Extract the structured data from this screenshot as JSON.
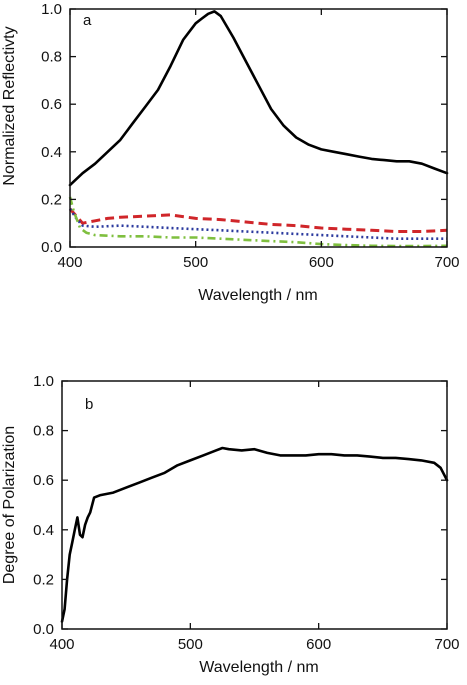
{
  "colors": {
    "black": "#000000",
    "red": "#d0262a",
    "blue": "#2b3a9e",
    "green": "#7fbf3f",
    "axis": "#111111"
  },
  "chart_data": [
    {
      "type": "line",
      "panel": "a",
      "xlabel": "Wavelength / nm",
      "ylabel": "Normalized Reflectivty",
      "xlim": [
        400,
        700
      ],
      "ylim": [
        0,
        1.0
      ],
      "xticks": [
        "400",
        "500",
        "600",
        "700"
      ],
      "yticks": [
        "0.0",
        "0.2",
        "0.4",
        "0.6",
        "0.8",
        "1.0"
      ],
      "series": [
        {
          "style": "solid",
          "color": "black",
          "x": [
            400,
            410,
            420,
            430,
            440,
            450,
            460,
            470,
            480,
            490,
            500,
            505,
            510,
            515,
            520,
            530,
            540,
            550,
            560,
            570,
            580,
            590,
            600,
            610,
            620,
            630,
            640,
            650,
            660,
            670,
            680,
            690,
            700
          ],
          "y": [
            0.26,
            0.31,
            0.35,
            0.4,
            0.45,
            0.52,
            0.59,
            0.66,
            0.76,
            0.87,
            0.94,
            0.96,
            0.98,
            0.99,
            0.97,
            0.88,
            0.78,
            0.68,
            0.58,
            0.51,
            0.46,
            0.43,
            0.41,
            0.4,
            0.39,
            0.38,
            0.37,
            0.365,
            0.36,
            0.36,
            0.35,
            0.33,
            0.31
          ]
        },
        {
          "style": "dashed",
          "color": "red",
          "x": [
            400,
            405,
            410,
            420,
            430,
            440,
            460,
            480,
            500,
            520,
            540,
            560,
            580,
            600,
            620,
            640,
            660,
            680,
            700
          ],
          "y": [
            0.16,
            0.13,
            0.1,
            0.11,
            0.12,
            0.125,
            0.13,
            0.135,
            0.12,
            0.115,
            0.105,
            0.095,
            0.09,
            0.08,
            0.075,
            0.07,
            0.065,
            0.065,
            0.07
          ]
        },
        {
          "style": "dotted",
          "color": "blue",
          "x": [
            400,
            405,
            410,
            420,
            440,
            460,
            480,
            500,
            520,
            540,
            560,
            580,
            600,
            620,
            640,
            660,
            680,
            700
          ],
          "y": [
            0.16,
            0.12,
            0.09,
            0.085,
            0.09,
            0.085,
            0.08,
            0.075,
            0.07,
            0.065,
            0.06,
            0.055,
            0.05,
            0.045,
            0.04,
            0.035,
            0.035,
            0.035
          ]
        },
        {
          "style": "dashdot",
          "color": "green",
          "x": [
            400,
            403,
            408,
            413,
            420,
            440,
            460,
            480,
            500,
            520,
            540,
            560,
            580,
            600,
            620,
            640,
            660,
            680,
            700
          ],
          "y": [
            0.21,
            0.15,
            0.08,
            0.06,
            0.05,
            0.045,
            0.045,
            0.04,
            0.04,
            0.035,
            0.03,
            0.025,
            0.02,
            0.012,
            0.008,
            0.005,
            0.004,
            0.004,
            0.005
          ]
        }
      ]
    },
    {
      "type": "line",
      "panel": "b",
      "xlabel": "Wavelength / nm",
      "ylabel": "Degree of Polarization",
      "xlim": [
        400,
        700
      ],
      "ylim": [
        0,
        1.0
      ],
      "xticks": [
        "400",
        "500",
        "600",
        "700"
      ],
      "yticks": [
        "0.0",
        "0.2",
        "0.4",
        "0.6",
        "0.8",
        "1.0"
      ],
      "series": [
        {
          "style": "solid",
          "color": "black",
          "x": [
            400,
            402,
            404,
            406,
            408,
            410,
            412,
            414,
            416,
            418,
            420,
            422,
            425,
            430,
            440,
            450,
            460,
            470,
            480,
            490,
            500,
            510,
            520,
            525,
            530,
            540,
            550,
            560,
            570,
            580,
            590,
            600,
            610,
            620,
            630,
            640,
            650,
            660,
            670,
            680,
            690,
            695,
            700
          ],
          "y": [
            0.03,
            0.08,
            0.2,
            0.3,
            0.35,
            0.4,
            0.45,
            0.38,
            0.37,
            0.42,
            0.45,
            0.47,
            0.53,
            0.54,
            0.55,
            0.57,
            0.59,
            0.61,
            0.63,
            0.66,
            0.68,
            0.7,
            0.72,
            0.73,
            0.725,
            0.72,
            0.725,
            0.71,
            0.7,
            0.7,
            0.7,
            0.705,
            0.705,
            0.7,
            0.7,
            0.695,
            0.69,
            0.69,
            0.685,
            0.68,
            0.67,
            0.65,
            0.6
          ]
        }
      ]
    }
  ]
}
